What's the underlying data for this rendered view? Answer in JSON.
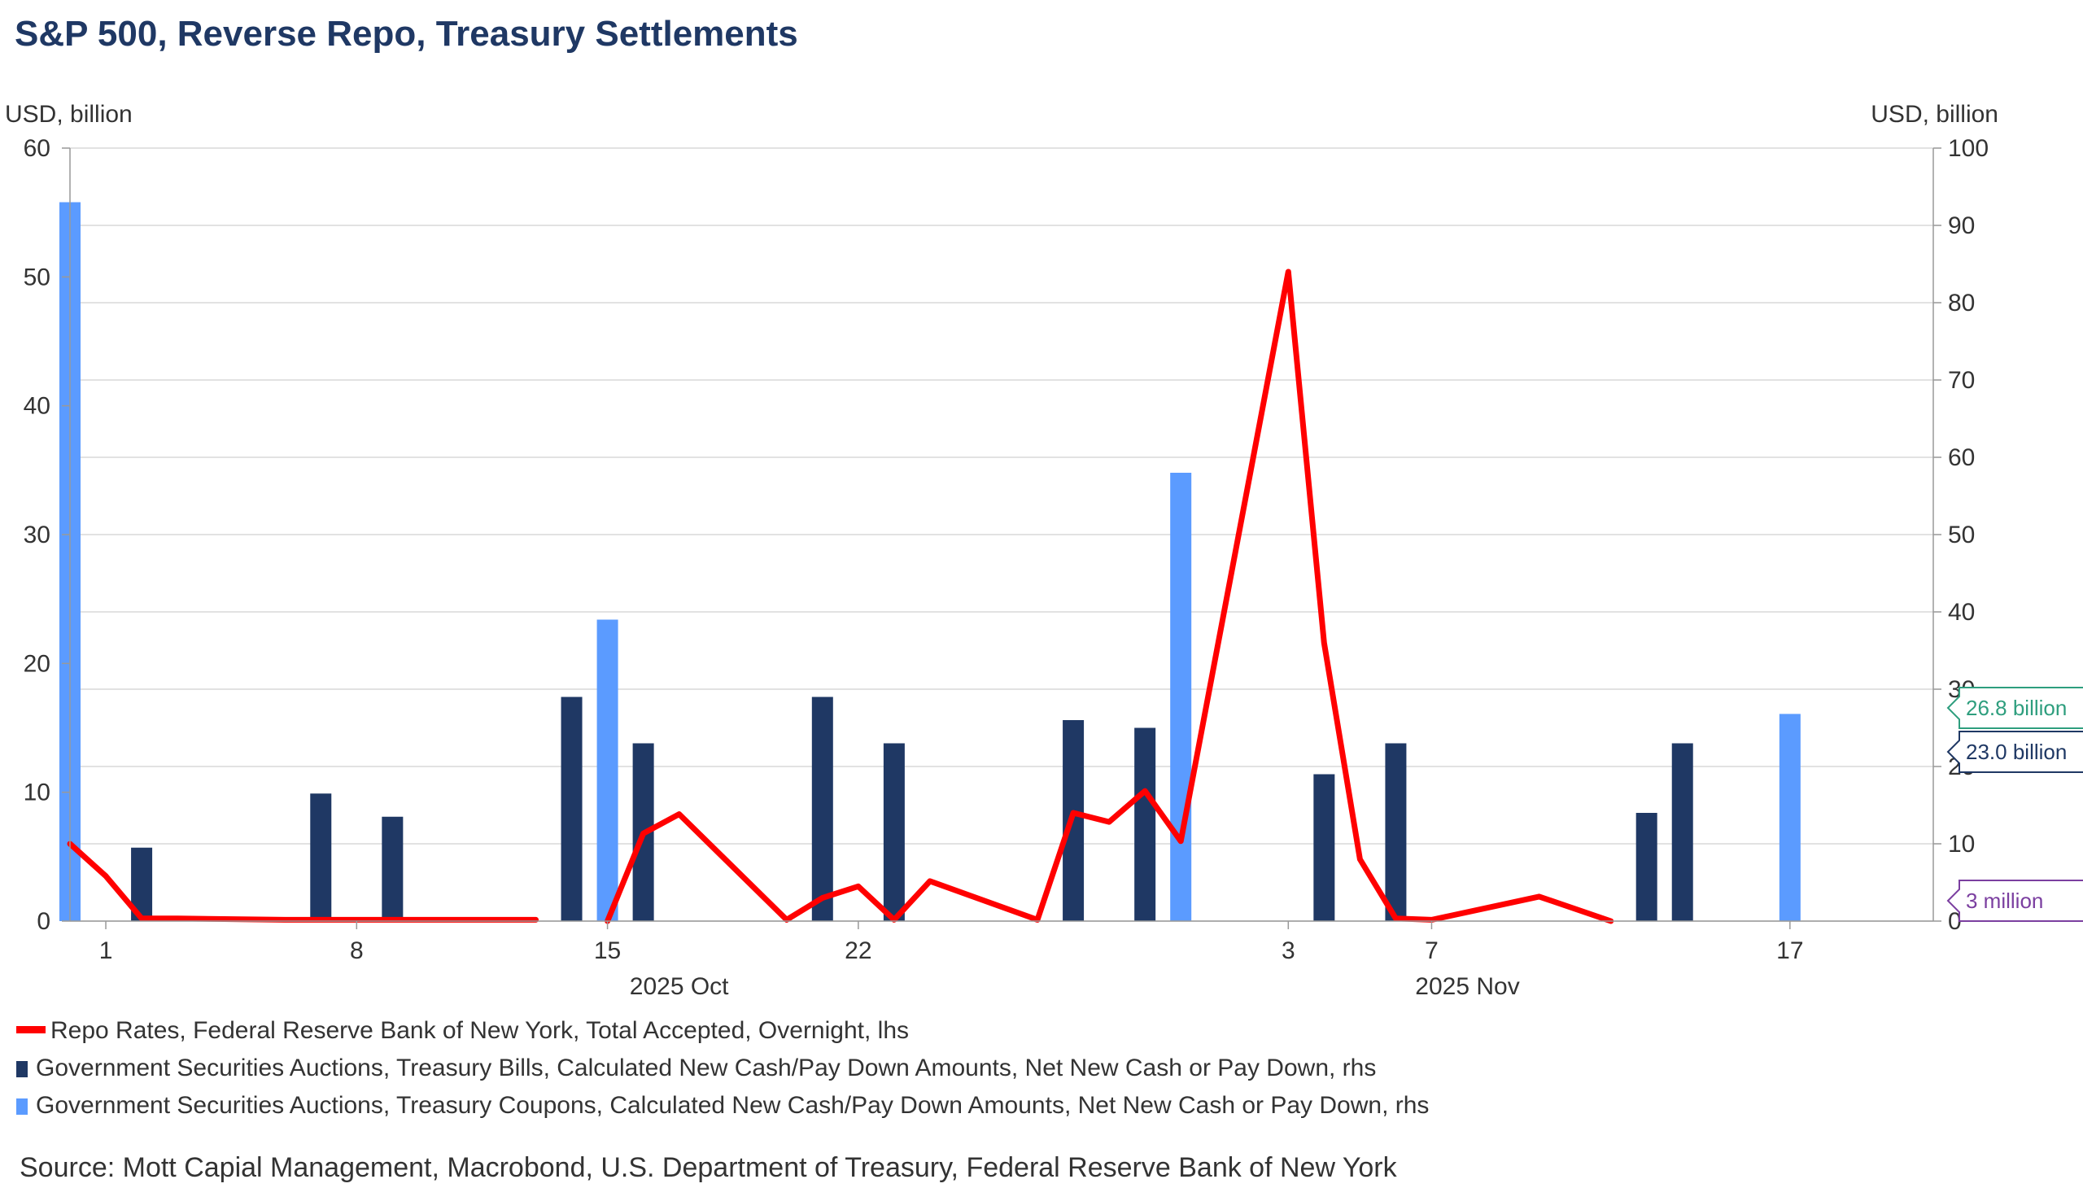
{
  "title": "S&P 500, Reverse Repo, Treasury Settlements",
  "source": "Source: Mott Capial Management, Macrobond, U.S. Department of Treasury, Federal Reserve Bank of New York",
  "colors": {
    "repo": "#ff0000",
    "bills": "#1f3864",
    "coupons": "#5b9bff",
    "grid": "#d9d9d9",
    "axis": "#999999"
  },
  "chart_data": {
    "type": "bar",
    "title": "S&P 500, Reverse Repo, Treasury Settlements",
    "left_axis": {
      "label": "USD, billion",
      "min": 0,
      "max": 60,
      "ticks": [
        0,
        10,
        20,
        30,
        40,
        50,
        60
      ]
    },
    "right_axis": {
      "label": "USD, billion",
      "min": 0,
      "max": 100,
      "ticks": [
        0,
        10,
        20,
        30,
        40,
        50,
        60,
        70,
        80,
        90,
        100
      ]
    },
    "x_axis": {
      "start": "2025-09-30",
      "end": "2025-11-21",
      "tick_labels": [
        {
          "date": "2025-10-01",
          "label": "1"
        },
        {
          "date": "2025-10-08",
          "label": "8"
        },
        {
          "date": "2025-10-15",
          "label": "15"
        },
        {
          "date": "2025-10-22",
          "label": "22"
        },
        {
          "date": "2025-11-03",
          "label": "3"
        },
        {
          "date": "2025-11-07",
          "label": "7"
        },
        {
          "date": "2025-11-17",
          "label": "17"
        }
      ],
      "month_labels": [
        {
          "date": "2025-10-17",
          "label": "2025 Oct"
        },
        {
          "date": "2025-11-08",
          "label": "2025 Nov"
        }
      ]
    },
    "series": [
      {
        "name": "Repo Rates, Federal Reserve Bank of New York, Total Accepted, Overnight, lhs",
        "type": "line",
        "axis": "left",
        "segments": [
          [
            {
              "date": "2025-09-30",
              "value": 6.0
            },
            {
              "date": "2025-10-01",
              "value": 3.5
            },
            {
              "date": "2025-10-02",
              "value": 0.2
            },
            {
              "date": "2025-10-03",
              "value": 0.2
            },
            {
              "date": "2025-10-06",
              "value": 0.1
            },
            {
              "date": "2025-10-07",
              "value": 0.1
            },
            {
              "date": "2025-10-08",
              "value": 0.1
            },
            {
              "date": "2025-10-09",
              "value": 0.1
            },
            {
              "date": "2025-10-10",
              "value": 0.1
            },
            {
              "date": "2025-10-13",
              "value": 0.1
            }
          ],
          [
            {
              "date": "2025-10-15",
              "value": 0.0
            },
            {
              "date": "2025-10-16",
              "value": 6.8
            },
            {
              "date": "2025-10-17",
              "value": 8.3
            },
            {
              "date": "2025-10-20",
              "value": 0.1
            },
            {
              "date": "2025-10-21",
              "value": 1.8
            },
            {
              "date": "2025-10-22",
              "value": 2.7
            },
            {
              "date": "2025-10-23",
              "value": 0.1
            },
            {
              "date": "2025-10-24",
              "value": 3.1
            },
            {
              "date": "2025-10-27",
              "value": 0.1
            },
            {
              "date": "2025-10-28",
              "value": 8.4
            },
            {
              "date": "2025-10-29",
              "value": 7.7
            },
            {
              "date": "2025-10-30",
              "value": 10.1
            },
            {
              "date": "2025-10-31",
              "value": 6.2
            },
            {
              "date": "2025-11-03",
              "value": 50.4
            },
            {
              "date": "2025-11-04",
              "value": 21.6
            },
            {
              "date": "2025-11-05",
              "value": 4.8
            },
            {
              "date": "2025-11-06",
              "value": 0.2
            },
            {
              "date": "2025-11-07",
              "value": 0.1
            },
            {
              "date": "2025-11-10",
              "value": 1.9
            },
            {
              "date": "2025-11-12",
              "value": 0.0
            }
          ]
        ]
      },
      {
        "name": "Government Securities Auctions, Treasury Bills, Calculated New Cash/Pay Down Amounts, Net New Cash or Pay Down, rhs",
        "type": "bar",
        "axis": "right",
        "points": [
          {
            "date": "2025-09-30",
            "value": 4.4
          },
          {
            "date": "2025-10-02",
            "value": 9.5
          },
          {
            "date": "2025-10-07",
            "value": 16.5
          },
          {
            "date": "2025-10-09",
            "value": 13.5
          },
          {
            "date": "2025-10-14",
            "value": 29.0
          },
          {
            "date": "2025-10-16",
            "value": 23.0
          },
          {
            "date": "2025-10-21",
            "value": 29.0
          },
          {
            "date": "2025-10-23",
            "value": 23.0
          },
          {
            "date": "2025-10-28",
            "value": 26.0
          },
          {
            "date": "2025-10-30",
            "value": 25.0
          },
          {
            "date": "2025-11-04",
            "value": 19.0
          },
          {
            "date": "2025-11-06",
            "value": 23.0
          },
          {
            "date": "2025-11-13",
            "value": 14.0
          },
          {
            "date": "2025-11-14",
            "value": 23.0
          }
        ]
      },
      {
        "name": "Government Securities Auctions, Treasury Coupons, Calculated New Cash/Pay Down Amounts, Net New Cash or Pay Down, rhs",
        "type": "bar",
        "axis": "right",
        "points": [
          {
            "date": "2025-09-30",
            "value": 93.0
          },
          {
            "date": "2025-10-15",
            "value": 39.0
          },
          {
            "date": "2025-10-31",
            "value": 58.0
          },
          {
            "date": "2025-11-17",
            "value": 26.8
          }
        ]
      }
    ],
    "callouts": [
      {
        "label": "26.8 billion",
        "value": 26.8,
        "color": "#2e9e7e"
      },
      {
        "label": "23.0 billion",
        "value": 23.0,
        "color": "#1f3864"
      },
      {
        "label": "3 million",
        "value": 0.003,
        "color": "#7b3fa0"
      }
    ],
    "grid": true,
    "legend_position": "bottom-left"
  }
}
